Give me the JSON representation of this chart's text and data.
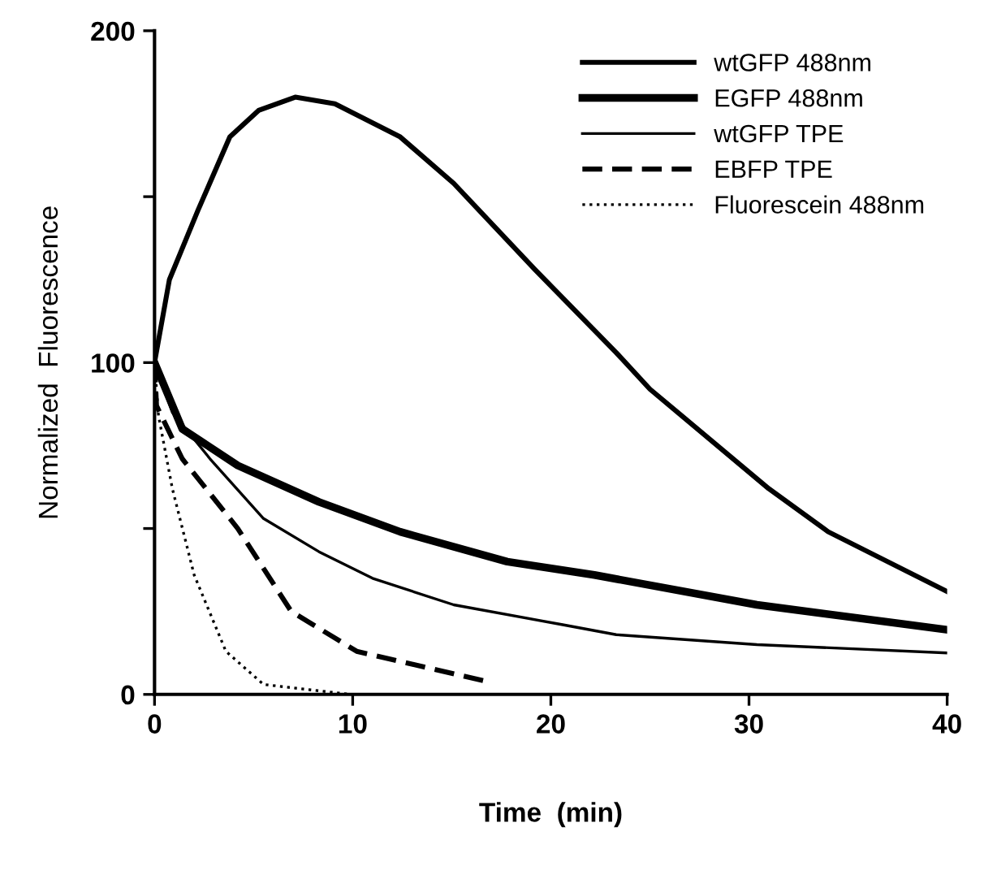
{
  "chart_data": {
    "type": "line",
    "xlabel": "Time  (min)",
    "ylabel": "Normalized  Fluorescence",
    "xlim": [
      0,
      40
    ],
    "ylim": [
      0,
      200
    ],
    "xticks": [
      0,
      10,
      20,
      30,
      40
    ],
    "yticks": [
      0,
      {
        "value": 50,
        "label": null
      },
      100,
      {
        "value": 150,
        "label": null
      },
      200
    ],
    "legend": "top right",
    "grid": false,
    "series": [
      {
        "name": "wtGFP 488nm",
        "color": "#000000",
        "line_style": "solid",
        "x": [
          0,
          0.75,
          2.2,
          3.8,
          5.25,
          7.1,
          9.1,
          12.4,
          15.1,
          19.2,
          23.3,
          25,
          31,
          34,
          40
        ],
        "values": [
          100,
          125,
          146,
          168,
          176,
          180,
          178,
          168,
          154,
          128,
          103,
          92,
          62,
          49,
          31
        ]
      },
      {
        "name": "EGFP 488nm",
        "color": "#000000",
        "line_style": "solid",
        "x": [
          0,
          1.4,
          4.2,
          8.3,
          12.4,
          17.8,
          22.2,
          30.4,
          40
        ],
        "values": [
          100,
          80,
          69,
          58,
          49,
          40,
          36,
          27,
          19.5
        ]
      },
      {
        "name": "wtGFP TPE",
        "color": "#000000",
        "line_style": "solid",
        "x": [
          0,
          0.9,
          2.8,
          5.5,
          8.3,
          11,
          15.1,
          20.6,
          23.3,
          30.4,
          40
        ],
        "values": [
          100,
          85,
          71,
          53,
          43,
          35,
          27,
          21,
          18,
          15,
          12.5
        ]
      },
      {
        "name": "EBFP TPE",
        "color": "#000000",
        "line_style": "dashed",
        "x": [
          0,
          0.1,
          1.4,
          4.2,
          6.9,
          10.2,
          16.7
        ],
        "values": [
          100,
          87,
          71,
          50,
          25,
          13,
          4
        ]
      },
      {
        "name": "Fluorescein 488nm",
        "color": "#000000",
        "line_style": "dotted",
        "x": [
          0,
          0.2,
          0.9,
          2,
          3.6,
          5.5,
          9.9
        ],
        "values": [
          100,
          84,
          62,
          36,
          13,
          3,
          0
        ]
      }
    ]
  }
}
